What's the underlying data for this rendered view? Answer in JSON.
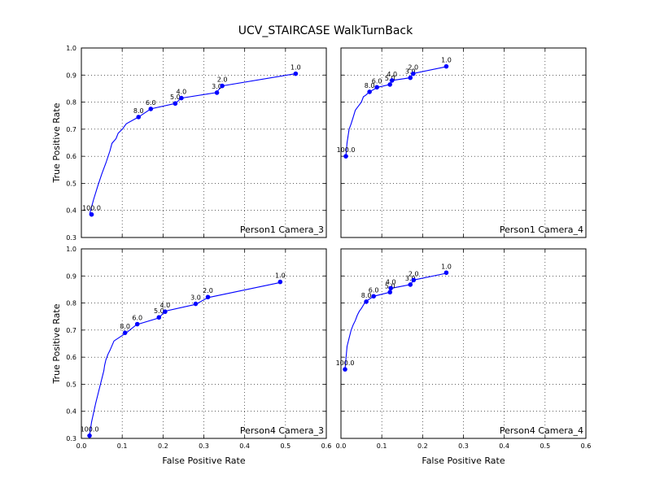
{
  "figure_title": "UCV_STAIRCASE WalkTurnBack",
  "chart_data": [
    {
      "type": "line",
      "panel_label": "Person1 Camera_3",
      "xlabel": "",
      "ylabel": "True Positive Rate",
      "xlim": [
        0,
        0.6
      ],
      "ylim": [
        0.3,
        1.0
      ],
      "x_ticks": [],
      "y_ticks": [
        "0.3",
        "0.4",
        "0.5",
        "0.6",
        "0.7",
        "0.8",
        "0.9",
        "1.0"
      ],
      "grid": true,
      "color": "#0000ff",
      "x": [
        0.02,
        0.03,
        0.04,
        0.05,
        0.06,
        0.07,
        0.075,
        0.085,
        0.09,
        0.1,
        0.11,
        0.14,
        0.17,
        0.23,
        0.245,
        0.33,
        0.345,
        0.525
      ],
      "y": [
        0.385,
        0.44,
        0.49,
        0.535,
        0.575,
        0.62,
        0.648,
        0.665,
        0.685,
        0.7,
        0.72,
        0.745,
        0.775,
        0.795,
        0.815,
        0.835,
        0.86,
        0.905
      ],
      "markers": [
        {
          "x": 0.025,
          "y": 0.385,
          "label": "100.0"
        },
        {
          "x": 0.14,
          "y": 0.745,
          "label": "8.0"
        },
        {
          "x": 0.17,
          "y": 0.775,
          "label": "6.0"
        },
        {
          "x": 0.23,
          "y": 0.795,
          "label": "5.0"
        },
        {
          "x": 0.245,
          "y": 0.815,
          "label": "4.0"
        },
        {
          "x": 0.332,
          "y": 0.835,
          "label": "3.0"
        },
        {
          "x": 0.345,
          "y": 0.86,
          "label": "2.0"
        },
        {
          "x": 0.525,
          "y": 0.905,
          "label": "1.0"
        }
      ]
    },
    {
      "type": "line",
      "panel_label": "Person1 Camera_4",
      "xlabel": "",
      "ylabel": "",
      "xlim": [
        0,
        0.6
      ],
      "ylim": [
        0.3,
        1.0
      ],
      "x_ticks": [],
      "y_ticks": [],
      "grid": true,
      "color": "#0000ff",
      "x": [
        0.012,
        0.015,
        0.02,
        0.025,
        0.03,
        0.035,
        0.04,
        0.05,
        0.055,
        0.06,
        0.07,
        0.09,
        0.12,
        0.125,
        0.17,
        0.175,
        0.255
      ],
      "y": [
        0.6,
        0.65,
        0.7,
        0.72,
        0.745,
        0.77,
        0.78,
        0.8,
        0.82,
        0.825,
        0.838,
        0.855,
        0.865,
        0.88,
        0.89,
        0.905,
        0.93
      ],
      "markers": [
        {
          "x": 0.012,
          "y": 0.6,
          "label": "100.0"
        },
        {
          "x": 0.07,
          "y": 0.838,
          "label": "8.0"
        },
        {
          "x": 0.088,
          "y": 0.855,
          "label": "6.0"
        },
        {
          "x": 0.12,
          "y": 0.865,
          "label": "5.0"
        },
        {
          "x": 0.125,
          "y": 0.88,
          "label": "4.0"
        },
        {
          "x": 0.17,
          "y": 0.89,
          "label": "3.0"
        },
        {
          "x": 0.177,
          "y": 0.905,
          "label": "2.0"
        },
        {
          "x": 0.258,
          "y": 0.932,
          "label": "1.0"
        }
      ]
    },
    {
      "type": "line",
      "panel_label": "Person4 Camera_3",
      "xlabel": "False Positive Rate",
      "ylabel": "True Positive Rate",
      "xlim": [
        0,
        0.6
      ],
      "ylim": [
        0.3,
        1.0
      ],
      "x_ticks": [
        "0.0",
        "0.1",
        "0.2",
        "0.3",
        "0.4",
        "0.5",
        "0.6"
      ],
      "y_ticks": [
        "0.3",
        "0.4",
        "0.5",
        "0.6",
        "0.7",
        "0.8",
        "0.9",
        "1.0"
      ],
      "grid": true,
      "color": "#0000ff",
      "x": [
        0.02,
        0.025,
        0.035,
        0.045,
        0.055,
        0.057,
        0.06,
        0.065,
        0.07,
        0.08,
        0.11,
        0.135,
        0.19,
        0.205,
        0.28,
        0.31,
        0.485
      ],
      "y": [
        0.31,
        0.36,
        0.43,
        0.49,
        0.55,
        0.57,
        0.59,
        0.61,
        0.625,
        0.66,
        0.69,
        0.72,
        0.745,
        0.77,
        0.795,
        0.82,
        0.875
      ],
      "markers": [
        {
          "x": 0.02,
          "y": 0.31,
          "label": "100.0"
        },
        {
          "x": 0.107,
          "y": 0.69,
          "label": "8.0"
        },
        {
          "x": 0.137,
          "y": 0.722,
          "label": "6.0"
        },
        {
          "x": 0.19,
          "y": 0.747,
          "label": "5.0"
        },
        {
          "x": 0.205,
          "y": 0.768,
          "label": "4.0"
        },
        {
          "x": 0.28,
          "y": 0.797,
          "label": "3.0"
        },
        {
          "x": 0.31,
          "y": 0.822,
          "label": "2.0"
        },
        {
          "x": 0.487,
          "y": 0.878,
          "label": "1.0"
        }
      ]
    },
    {
      "type": "line",
      "panel_label": "Person4 Camera_4",
      "xlabel": "False Positive Rate",
      "ylabel": "",
      "xlim": [
        0,
        0.6
      ],
      "ylim": [
        0.3,
        1.0
      ],
      "x_ticks": [
        "0.0",
        "0.1",
        "0.2",
        "0.3",
        "0.4",
        "0.5",
        "0.6"
      ],
      "y_ticks": [],
      "grid": true,
      "color": "#0000ff",
      "x": [
        0.01,
        0.012,
        0.015,
        0.02,
        0.025,
        0.03,
        0.035,
        0.04,
        0.045,
        0.05,
        0.06,
        0.08,
        0.12,
        0.125,
        0.17,
        0.178,
        0.258
      ],
      "y": [
        0.555,
        0.59,
        0.64,
        0.67,
        0.7,
        0.72,
        0.735,
        0.755,
        0.77,
        0.78,
        0.805,
        0.825,
        0.84,
        0.855,
        0.868,
        0.885,
        0.91
      ],
      "markers": [
        {
          "x": 0.01,
          "y": 0.555,
          "label": "100.0"
        },
        {
          "x": 0.062,
          "y": 0.805,
          "label": "8.0"
        },
        {
          "x": 0.08,
          "y": 0.825,
          "label": "6.0"
        },
        {
          "x": 0.12,
          "y": 0.84,
          "label": "5.0"
        },
        {
          "x": 0.122,
          "y": 0.855,
          "label": "4.0"
        },
        {
          "x": 0.17,
          "y": 0.868,
          "label": "3.0"
        },
        {
          "x": 0.178,
          "y": 0.885,
          "label": "2.0"
        },
        {
          "x": 0.258,
          "y": 0.912,
          "label": "1.0"
        }
      ]
    }
  ]
}
